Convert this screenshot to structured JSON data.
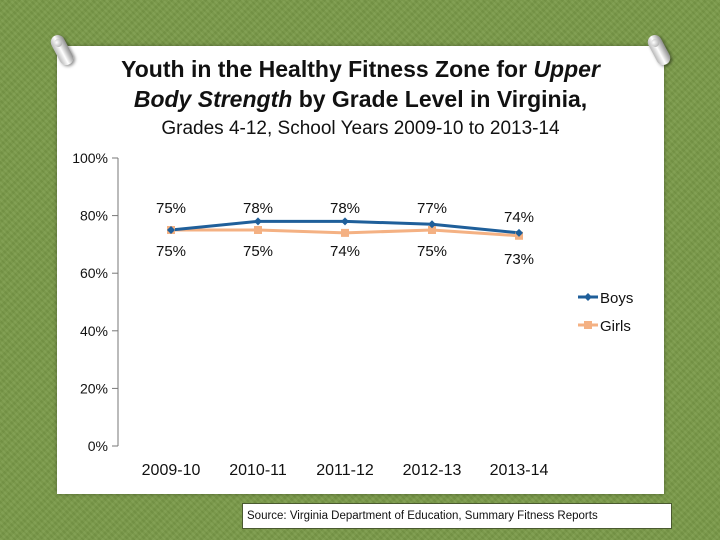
{
  "slide": {
    "title_line1": "Youth in the Healthy Fitness Zone for",
    "title_italic1": "Upper",
    "title_italic2": "Body Strength",
    "title_line2": "by Grade Level in Virginia,",
    "subtitle": "Grades 4-12, School Years 2009-10 to 2013-14",
    "source": "Source: Virginia Department of Education, Summary Fitness Reports"
  },
  "chart_data": {
    "type": "line",
    "categories": [
      "2009-10",
      "2010-11",
      "2011-12",
      "2012-13",
      "2013-14"
    ],
    "series": [
      {
        "name": "Boys",
        "color": "#1f5f9a",
        "values": [
          75,
          78,
          78,
          77,
          74
        ],
        "labels": [
          "75%",
          "78%",
          "78%",
          "77%",
          "74%"
        ]
      },
      {
        "name": "Girls",
        "color": "#f4b183",
        "values": [
          75,
          75,
          74,
          75,
          73
        ],
        "labels": [
          "75%",
          "75%",
          "74%",
          "75%",
          "73%"
        ]
      }
    ],
    "ylim": [
      0,
      100
    ],
    "yticks": [
      0,
      20,
      40,
      60,
      80,
      100
    ],
    "ytick_labels": [
      "0%",
      "20%",
      "40%",
      "60%",
      "80%",
      "100%"
    ],
    "legend": "right"
  }
}
